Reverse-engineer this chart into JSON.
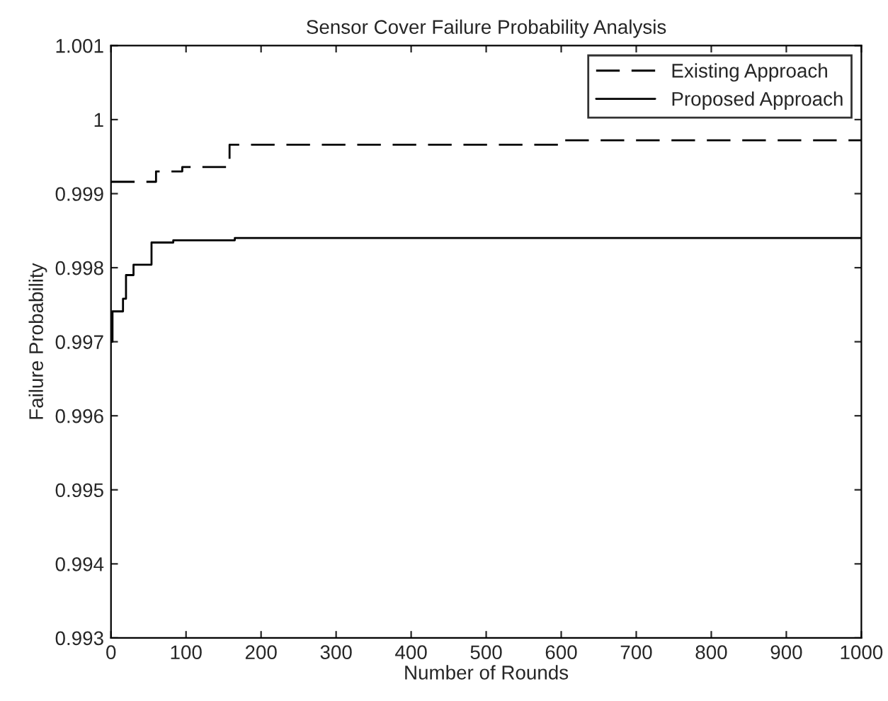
{
  "chart_data": {
    "type": "step",
    "title": "Sensor Cover Failure Probability Analysis",
    "xlabel": "Number of Rounds",
    "ylabel": "Failure Probability",
    "xlim": [
      0,
      1000
    ],
    "xticks": [
      0,
      100,
      200,
      300,
      400,
      500,
      600,
      700,
      800,
      900,
      1000
    ],
    "ylim": [
      0.993,
      1.001
    ],
    "yticks": [
      0.993,
      0.994,
      0.995,
      0.996,
      0.997,
      0.998,
      0.999,
      1,
      1.001
    ],
    "grid": false,
    "legend": "top right",
    "series": [
      {
        "name": "Existing Approach",
        "color": "#000000",
        "line_style": "dashed",
        "x": [
          0,
          43,
          60,
          95,
          158,
          600,
          1000
        ],
        "values": [
          0.99916,
          0.99916,
          0.9993,
          0.99936,
          0.99966,
          0.99972,
          0.99972
        ]
      },
      {
        "name": "Proposed Approach",
        "color": "#000000",
        "line_style": "solid",
        "x": [
          0,
          2,
          16,
          20,
          30,
          54,
          83,
          165,
          1000
        ],
        "values": [
          0.997,
          0.99741,
          0.99758,
          0.9979,
          0.99804,
          0.99834,
          0.99837,
          0.9984,
          0.9984
        ]
      }
    ]
  }
}
